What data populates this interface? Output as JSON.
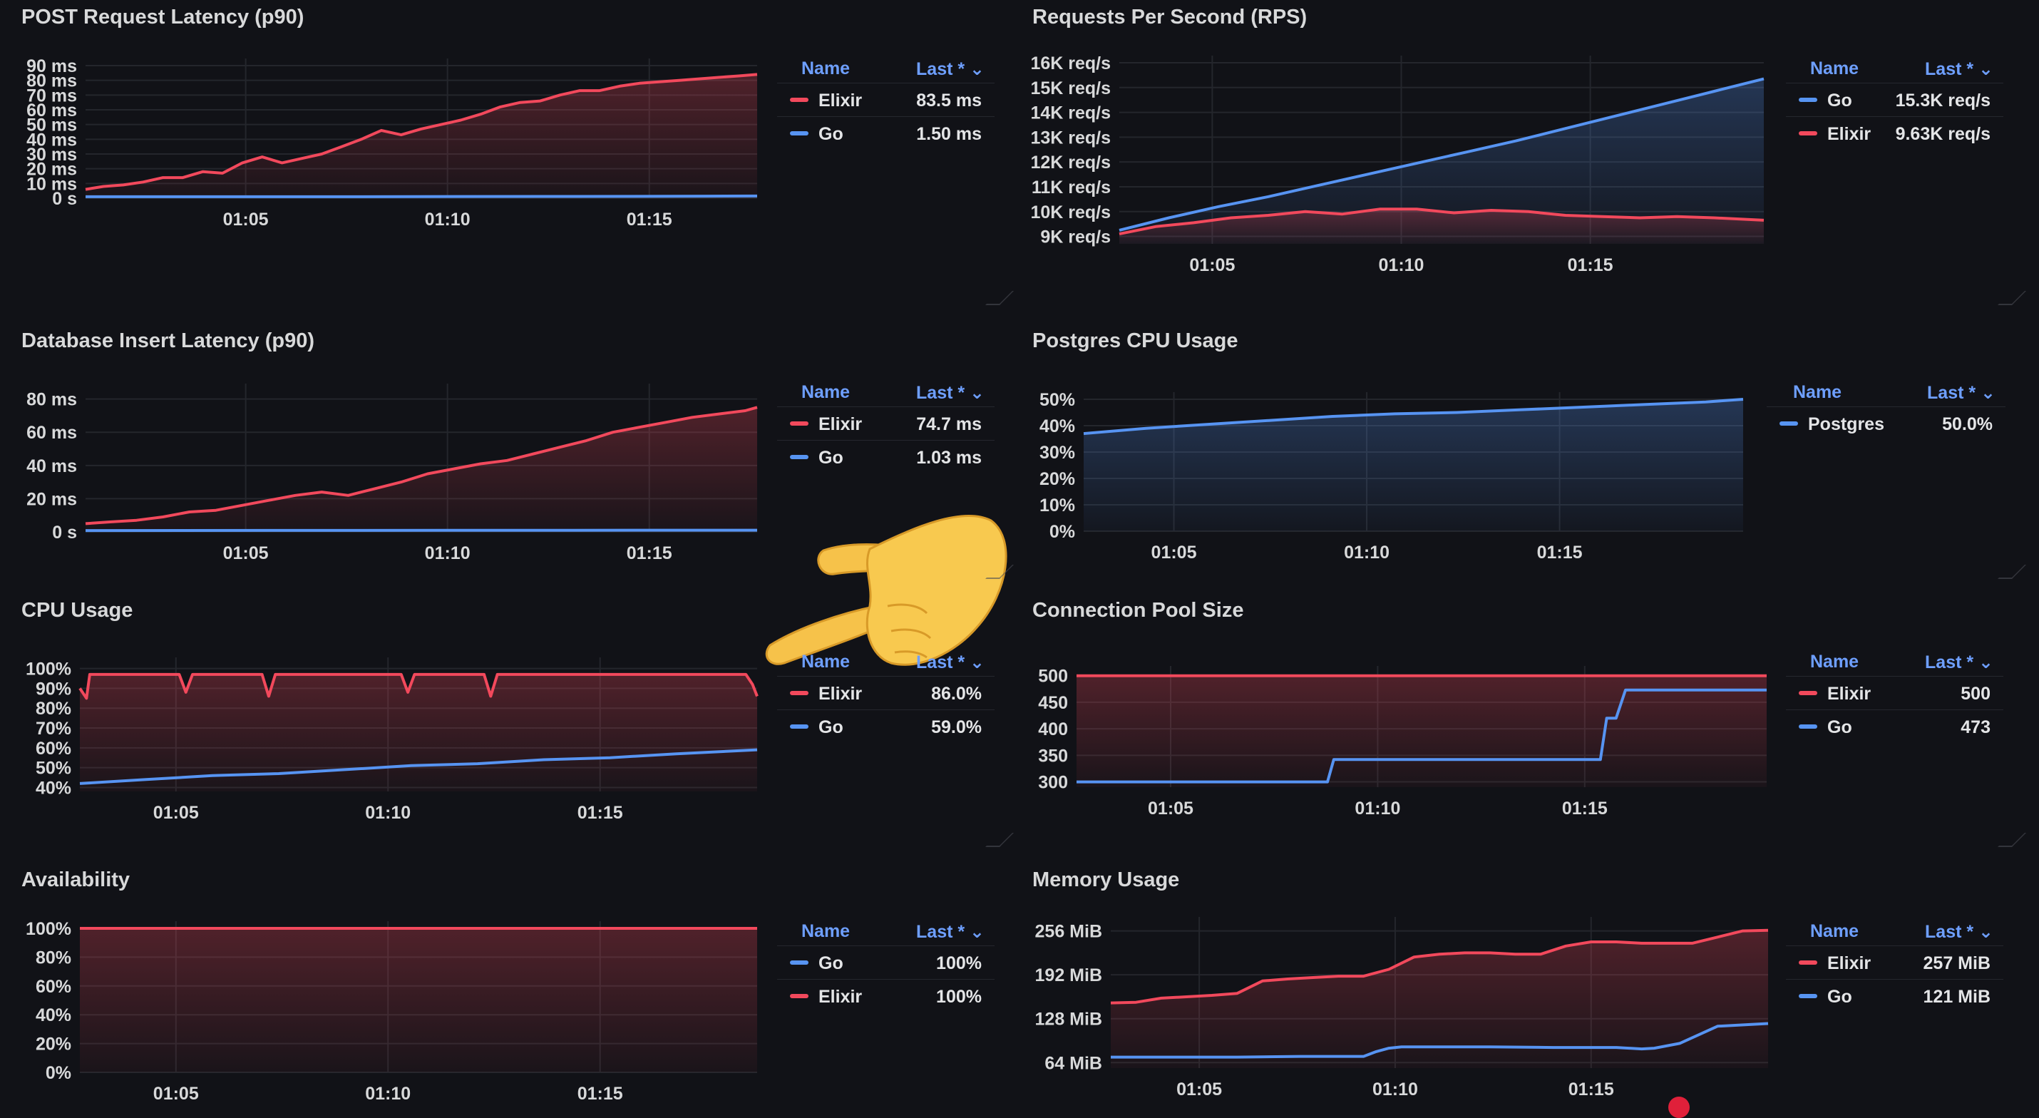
{
  "theme": {
    "background": "#111217",
    "elixir": "#f2495c",
    "go": "#5794f2",
    "legend_header": "#6e9fff"
  },
  "legend_header": {
    "name": "Name",
    "last": "Last * ⌄"
  },
  "chart_data": [
    {
      "id": "post-latency",
      "type": "line",
      "title": "POST Request Latency (p90)",
      "ylim": [
        0,
        90
      ],
      "yticks": [
        0,
        10,
        20,
        30,
        40,
        50,
        60,
        70,
        80,
        90
      ],
      "ytick_labels": [
        "0 s",
        "10 ms",
        "20 ms",
        "30 ms",
        "40 ms",
        "50 ms",
        "60 ms",
        "70 ms",
        "80 ms",
        "90 ms"
      ],
      "xlim": [
        63,
        1078
      ],
      "xticks": [
        305,
        610,
        915
      ],
      "xtick_labels": [
        "01:05",
        "01:10",
        "01:15"
      ],
      "series": [
        {
          "name": "Elixir",
          "color": "#f2495c",
          "fill": true,
          "x": [
            63,
            90,
            120,
            150,
            180,
            210,
            240,
            270,
            300,
            330,
            360,
            390,
            420,
            450,
            480,
            510,
            540,
            570,
            600,
            630,
            660,
            690,
            720,
            750,
            780,
            810,
            840,
            870,
            900,
            930,
            960,
            990,
            1020,
            1050,
            1078
          ],
          "y": [
            6,
            8,
            9,
            11,
            14,
            14,
            18,
            17,
            24,
            28,
            24,
            27,
            30,
            35,
            40,
            46,
            43,
            47,
            50,
            53,
            57,
            62,
            65,
            66,
            70,
            73,
            73,
            76,
            78,
            79,
            80,
            81,
            82,
            83,
            84
          ]
        },
        {
          "name": "Go",
          "color": "#5794f2",
          "fill": false,
          "x": [
            63,
            400,
            800,
            1000,
            1078
          ],
          "y": [
            1,
            1,
            1.2,
            1.4,
            1.5
          ]
        }
      ],
      "legend": [
        {
          "name": "Elixir",
          "color": "#f2495c",
          "value": "83.5 ms"
        },
        {
          "name": "Go",
          "color": "#5794f2",
          "value": "1.50 ms"
        }
      ]
    },
    {
      "id": "rps",
      "type": "line",
      "title": "Requests Per Second (RPS)",
      "ylim": [
        8700,
        16000
      ],
      "yticks": [
        9000,
        10000,
        11000,
        12000,
        13000,
        14000,
        15000,
        16000
      ],
      "ytick_labels": [
        "9K req/s",
        "10K req/s",
        "11K req/s",
        "12K req/s",
        "13K req/s",
        "14K req/s",
        "15K req/s",
        "16K req/s"
      ],
      "xlim": [
        0,
        1040
      ],
      "xticks": [
        150,
        455,
        760
      ],
      "xtick_labels": [
        "01:05",
        "01:10",
        "01:15"
      ],
      "series": [
        {
          "name": "Go",
          "color": "#5794f2",
          "fill": true,
          "x": [
            0,
            80,
            160,
            240,
            320,
            400,
            480,
            560,
            640,
            720,
            800,
            880,
            960,
            1040
          ],
          "y": [
            9250,
            9750,
            10200,
            10600,
            11050,
            11500,
            11950,
            12400,
            12850,
            13350,
            13850,
            14350,
            14850,
            15350
          ]
        },
        {
          "name": "Elixir",
          "color": "#f2495c",
          "fill": true,
          "x": [
            0,
            60,
            120,
            180,
            240,
            300,
            360,
            420,
            480,
            540,
            600,
            660,
            720,
            780,
            840,
            900,
            960,
            1040
          ],
          "y": [
            9100,
            9400,
            9550,
            9750,
            9850,
            10000,
            9900,
            10100,
            10100,
            9950,
            10050,
            10000,
            9850,
            9800,
            9750,
            9800,
            9750,
            9650
          ]
        }
      ],
      "legend": [
        {
          "name": "Go",
          "color": "#5794f2",
          "value": "15.3K req/s"
        },
        {
          "name": "Elixir",
          "color": "#f2495c",
          "value": "9.63K req/s"
        }
      ]
    },
    {
      "id": "db-latency",
      "type": "line",
      "title": "Database Insert Latency (p90)",
      "ylim": [
        0,
        85
      ],
      "yticks": [
        0,
        20,
        40,
        60,
        80
      ],
      "ytick_labels": [
        "0 s",
        "20 ms",
        "40 ms",
        "60 ms",
        "80 ms"
      ],
      "xlim": [
        63,
        1078
      ],
      "xticks": [
        305,
        610,
        915
      ],
      "xtick_labels": [
        "01:05",
        "01:10",
        "01:15"
      ],
      "series": [
        {
          "name": "Elixir",
          "color": "#f2495c",
          "fill": true,
          "x": [
            63,
            100,
            140,
            180,
            220,
            260,
            300,
            340,
            380,
            420,
            460,
            500,
            540,
            580,
            620,
            660,
            700,
            740,
            780,
            820,
            860,
            900,
            940,
            980,
            1020,
            1060,
            1078
          ],
          "y": [
            5,
            6,
            7,
            9,
            12,
            13,
            16,
            19,
            22,
            24,
            22,
            26,
            30,
            35,
            38,
            41,
            43,
            47,
            51,
            55,
            60,
            63,
            66,
            69,
            71,
            73,
            75
          ]
        },
        {
          "name": "Go",
          "color": "#5794f2",
          "fill": false,
          "x": [
            63,
            400,
            800,
            1078
          ],
          "y": [
            0.8,
            0.9,
            1.0,
            1.03
          ]
        }
      ],
      "legend": [
        {
          "name": "Elixir",
          "color": "#f2495c",
          "value": "74.7 ms"
        },
        {
          "name": "Go",
          "color": "#5794f2",
          "value": "1.03 ms"
        }
      ]
    },
    {
      "id": "postgres-cpu",
      "type": "line",
      "title": "Postgres CPU Usage",
      "ylim": [
        0,
        50
      ],
      "yticks": [
        0,
        10,
        20,
        30,
        40,
        50
      ],
      "ytick_labels": [
        "0%",
        "10%",
        "20%",
        "30%",
        "40%",
        "50%"
      ],
      "xlim": [
        0,
        1060
      ],
      "xticks": [
        145,
        455,
        765
      ],
      "xtick_labels": [
        "01:05",
        "01:10",
        "01:15"
      ],
      "series": [
        {
          "name": "Postgres",
          "color": "#5794f2",
          "fill": true,
          "x": [
            0,
            100,
            200,
            300,
            400,
            500,
            600,
            700,
            800,
            900,
            1000,
            1060
          ],
          "y": [
            37,
            39,
            40.5,
            42,
            43.5,
            44.5,
            45,
            46,
            47,
            48,
            49,
            50
          ]
        }
      ],
      "legend": [
        {
          "name": "Postgres",
          "color": "#5794f2",
          "value": "50.0%"
        }
      ]
    },
    {
      "id": "cpu-usage",
      "type": "line",
      "title": "CPU Usage",
      "ylim": [
        38,
        102
      ],
      "yticks": [
        40,
        50,
        60,
        70,
        80,
        90,
        100
      ],
      "ytick_labels": [
        "40%",
        "50%",
        "60%",
        "70%",
        "80%",
        "90%",
        "100%"
      ],
      "xlim": [
        0,
        1022
      ],
      "xticks": [
        145,
        465,
        785
      ],
      "xtick_labels": [
        "01:05",
        "01:10",
        "01:15"
      ],
      "series": [
        {
          "name": "Elixir",
          "color": "#f2495c",
          "fill": true,
          "x": [
            0,
            10,
            15,
            150,
            160,
            170,
            275,
            285,
            295,
            485,
            495,
            505,
            610,
            620,
            630,
            1005,
            1015,
            1022
          ],
          "y": [
            90,
            85,
            97,
            97,
            88,
            97,
            97,
            86,
            97,
            97,
            88,
            97,
            97,
            86,
            97,
            97,
            92,
            86
          ]
        },
        {
          "name": "Go",
          "color": "#5794f2",
          "fill": false,
          "x": [
            0,
            100,
            200,
            300,
            400,
            500,
            600,
            700,
            800,
            900,
            1022
          ],
          "y": [
            42,
            44,
            46,
            47,
            49,
            51,
            52,
            54,
            55,
            57,
            59
          ]
        }
      ],
      "legend": [
        {
          "name": "Elixir",
          "color": "#f2495c",
          "value": "86.0%"
        },
        {
          "name": "Go",
          "color": "#5794f2",
          "value": "59.0%"
        }
      ]
    },
    {
      "id": "conn-pool",
      "type": "line",
      "title": "Connection Pool Size",
      "ylim": [
        290,
        505
      ],
      "yticks": [
        300,
        350,
        400,
        450,
        500
      ],
      "ytick_labels": [
        "300",
        "350",
        "400",
        "450",
        "500"
      ],
      "xlim": [
        0,
        1100
      ],
      "xticks": [
        150,
        480,
        810
      ],
      "xtick_labels": [
        "01:05",
        "01:10",
        "01:15"
      ],
      "series": [
        {
          "name": "Elixir",
          "color": "#f2495c",
          "fill": true,
          "x": [
            0,
            1100
          ],
          "y": [
            500,
            500
          ]
        },
        {
          "name": "Go",
          "color": "#5794f2",
          "fill": false,
          "x": [
            0,
            400,
            410,
            835,
            845,
            860,
            875,
            890,
            1100
          ],
          "y": [
            300,
            300,
            342,
            342,
            420,
            420,
            473,
            473,
            473
          ]
        }
      ],
      "legend": [
        {
          "name": "Elixir",
          "color": "#f2495c",
          "value": "500"
        },
        {
          "name": "Go",
          "color": "#5794f2",
          "value": "473"
        }
      ]
    },
    {
      "id": "availability",
      "type": "line",
      "title": "Availability",
      "ylim": [
        0,
        100
      ],
      "yticks": [
        0,
        20,
        40,
        60,
        80,
        100
      ],
      "ytick_labels": [
        "0%",
        "20%",
        "40%",
        "60%",
        "80%",
        "100%"
      ],
      "xlim": [
        0,
        1022
      ],
      "xticks": [
        145,
        465,
        785
      ],
      "xtick_labels": [
        "01:05",
        "01:10",
        "01:15"
      ],
      "series": [
        {
          "name": "Go",
          "color": "#5794f2",
          "fill": false,
          "x": [
            0,
            1022
          ],
          "y": [
            100,
            100
          ]
        },
        {
          "name": "Elixir",
          "color": "#f2495c",
          "fill": true,
          "x": [
            0,
            1022
          ],
          "y": [
            100,
            100
          ]
        }
      ],
      "legend": [
        {
          "name": "Go",
          "color": "#5794f2",
          "value": "100%"
        },
        {
          "name": "Elixir",
          "color": "#f2495c",
          "value": "100%"
        }
      ]
    },
    {
      "id": "memory",
      "type": "line",
      "title": "Memory Usage",
      "ylim": [
        56,
        266
      ],
      "yticks": [
        64,
        128,
        192,
        256
      ],
      "ytick_labels": [
        "64 MiB",
        "128 MiB",
        "192 MiB",
        "256 MiB"
      ],
      "xlim": [
        0,
        1040
      ],
      "xticks": [
        140,
        450,
        760
      ],
      "xtick_labels": [
        "01:05",
        "01:10",
        "01:15"
      ],
      "series": [
        {
          "name": "Elixir",
          "color": "#f2495c",
          "fill": true,
          "x": [
            0,
            40,
            80,
            120,
            160,
            200,
            240,
            280,
            320,
            360,
            400,
            440,
            480,
            520,
            560,
            600,
            640,
            680,
            720,
            760,
            800,
            840,
            880,
            920,
            960,
            1000,
            1040
          ],
          "y": [
            151,
            152,
            158,
            160,
            162,
            165,
            183,
            186,
            188,
            190,
            190,
            200,
            218,
            222,
            224,
            224,
            222,
            222,
            234,
            240,
            240,
            238,
            238,
            238,
            247,
            256,
            257
          ]
        },
        {
          "name": "Go",
          "color": "#5794f2",
          "fill": false,
          "x": [
            0,
            100,
            200,
            300,
            400,
            420,
            440,
            460,
            500,
            600,
            700,
            780,
            800,
            820,
            840,
            860,
            900,
            960,
            1040
          ],
          "y": [
            72,
            72,
            72,
            73,
            73,
            80,
            85,
            87,
            87,
            87,
            86,
            86,
            86,
            85,
            84,
            85,
            92,
            117,
            121
          ]
        }
      ],
      "legend": [
        {
          "name": "Elixir",
          "color": "#f2495c",
          "value": "257 MiB"
        },
        {
          "name": "Go",
          "color": "#5794f2",
          "value": "121 MiB"
        }
      ]
    }
  ]
}
